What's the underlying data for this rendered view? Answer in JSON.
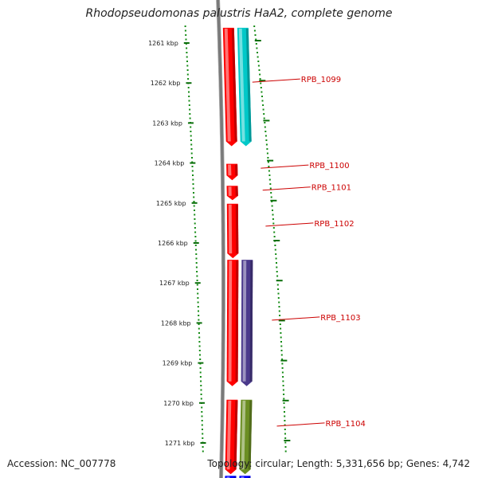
{
  "header": {
    "title": "Rhodopseudomonas palustris HaA2, complete genome"
  },
  "footer": {
    "accession": "Accession: NC_007778",
    "topology": "Topology: circular; Length: 5,331,656 bp; Genes: 4,742"
  },
  "colors": {
    "background": "#ffffff",
    "backbone": "#7a7a7a",
    "tick_dots": "#138a13",
    "forward_cds": "#ff0000",
    "cyan_feature": "#00c8c8",
    "purple_feature": "#4b3a8c",
    "olive_feature": "#6b8e23",
    "blue_feature": "#0000ff",
    "gene_label": "#cc0000"
  },
  "chart_data": {
    "type": "genome-map",
    "title": "Rhodopseudomonas palustris HaA2, complete genome",
    "accession": "NC_007778",
    "topology": "circular",
    "length_bp": 5331656,
    "gene_count": 4742,
    "axis_unit": "kbp",
    "visible_range_kbp": [
      1260.2,
      1271.8
    ],
    "ticks": [
      {
        "kbp": 1261,
        "label": "1261 kbp"
      },
      {
        "kbp": 1262,
        "label": "1262 kbp"
      },
      {
        "kbp": 1263,
        "label": "1263 kbp"
      },
      {
        "kbp": 1264,
        "label": "1264 kbp"
      },
      {
        "kbp": 1265,
        "label": "1265 kbp"
      },
      {
        "kbp": 1266,
        "label": "1266 kbp"
      },
      {
        "kbp": 1267,
        "label": "1267 kbp"
      },
      {
        "kbp": 1268,
        "label": "1268 kbp"
      },
      {
        "kbp": 1269,
        "label": "1269 kbp"
      },
      {
        "kbp": 1270,
        "label": "1270 kbp"
      },
      {
        "kbp": 1271,
        "label": "1271 kbp"
      }
    ],
    "features": [
      {
        "track": 1,
        "start_kbp": 1260.6,
        "end_kbp": 1263.6,
        "color": "#ff0000"
      },
      {
        "track": 2,
        "start_kbp": 1260.6,
        "end_kbp": 1263.6,
        "color": "#00c8c8"
      },
      {
        "track": 1,
        "start_kbp": 1264.0,
        "end_kbp": 1264.45,
        "color": "#ff0000"
      },
      {
        "track": 1,
        "start_kbp": 1264.55,
        "end_kbp": 1264.95,
        "color": "#ff0000"
      },
      {
        "track": 1,
        "start_kbp": 1265.0,
        "end_kbp": 1266.4,
        "color": "#ff0000"
      },
      {
        "track": 1,
        "start_kbp": 1266.4,
        "end_kbp": 1269.6,
        "color": "#ff0000"
      },
      {
        "track": 2,
        "start_kbp": 1266.4,
        "end_kbp": 1269.6,
        "color": "#4b3a8c"
      },
      {
        "track": 1,
        "start_kbp": 1269.9,
        "end_kbp": 1271.8,
        "color": "#ff0000"
      },
      {
        "track": 2,
        "start_kbp": 1269.9,
        "end_kbp": 1271.8,
        "color": "#6b8e23"
      },
      {
        "track": 1,
        "start_kbp": 1271.8,
        "end_kbp": 1272.0,
        "color": "#0000ff"
      },
      {
        "track": 2,
        "start_kbp": 1271.8,
        "end_kbp": 1272.0,
        "color": "#0000ff"
      }
    ],
    "gene_labels": [
      {
        "name": "RPB_1099",
        "kbp": 1261.9
      },
      {
        "name": "RPB_1100",
        "kbp": 1264.05
      },
      {
        "name": "RPB_1101",
        "kbp": 1264.6
      },
      {
        "name": "RPB_1102",
        "kbp": 1265.5
      },
      {
        "name": "RPB_1103",
        "kbp": 1267.85
      },
      {
        "name": "RPB_1104",
        "kbp": 1270.5
      }
    ]
  }
}
